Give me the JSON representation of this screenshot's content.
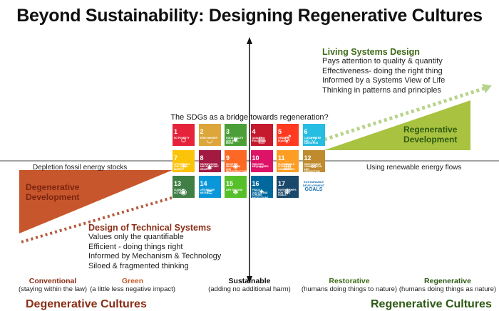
{
  "title": "Beyond Sustainability: Designing Regenerative Cultures",
  "living_systems": {
    "title": "Living Systems Design",
    "lines": [
      "Pays attention to quality & quantity",
      "Effectiveness- doing the right thing",
      "Informed by a Systems View of Life",
      "Thinking in patterns and principles"
    ]
  },
  "regenerative_development": [
    "Regenerative",
    "Development"
  ],
  "degenerative_development": [
    "Degenerative",
    "Development"
  ],
  "depletion_label": "Depletion fossil energy stocks",
  "renewable_label": "Using renewable energy flows",
  "technical_systems": {
    "title": "Design of Technical Systems",
    "lines": [
      "Values only the quantifiable",
      "Efficient - doing things right",
      "Informed by Mechanism & Technology",
      "Siloed & fragmented thinking"
    ]
  },
  "sdg_title": "The SDGs as a bridge towards regeneration?",
  "sdgs": [
    {
      "num": "1",
      "label": "NO POVERTY",
      "color": "#e5243b",
      "glyph": "☺"
    },
    {
      "num": "2",
      "label": "ZERO HUNGER",
      "color": "#dda63a",
      "glyph": "◡"
    },
    {
      "num": "3",
      "label": "GOOD HEALTH AND WELL-BEING",
      "color": "#4c9f38",
      "glyph": "♥"
    },
    {
      "num": "4",
      "label": "QUALITY EDUCATION",
      "color": "#c5192d",
      "glyph": "▤"
    },
    {
      "num": "5",
      "label": "GENDER EQUALITY",
      "color": "#ff3a21",
      "glyph": "⚥"
    },
    {
      "num": "6",
      "label": "CLEAN WATER AND SANITATION",
      "color": "#26bde2",
      "glyph": "▽"
    },
    {
      "num": "7",
      "label": "AFFORDABLE AND CLEAN ENERGY",
      "color": "#fcc30b",
      "glyph": "☀"
    },
    {
      "num": "8",
      "label": "DECENT WORK AND ECONOMIC GROWTH",
      "color": "#a21942",
      "glyph": "▲"
    },
    {
      "num": "9",
      "label": "INDUSTRY, INNOVATION AND INFRASTRUCTURE",
      "color": "#fd6925",
      "glyph": "◈"
    },
    {
      "num": "10",
      "label": "REDUCED INEQUALITIES",
      "color": "#dd1367",
      "glyph": "⇔"
    },
    {
      "num": "11",
      "label": "SUSTAINABLE CITIES AND COMMUNITIES",
      "color": "#fd9d24",
      "glyph": "▥"
    },
    {
      "num": "12",
      "label": "RESPONSIBLE CONSUMPTION AND PRODUCTION",
      "color": "#bf8b2e",
      "glyph": "∞"
    },
    {
      "num": "13",
      "label": "CLIMATE ACTION",
      "color": "#3f7e44",
      "glyph": "◉"
    },
    {
      "num": "14",
      "label": "LIFE BELOW WATER",
      "color": "#0a97d9",
      "glyph": "≋"
    },
    {
      "num": "15",
      "label": "LIFE ON LAND",
      "color": "#56c02b",
      "glyph": "♣"
    },
    {
      "num": "16",
      "label": "PEACE, JUSTICE AND STRONG INSTITUTIONS",
      "color": "#00689d",
      "glyph": "✦"
    },
    {
      "num": "17",
      "label": "PARTNERSHIPS FOR THE GOALS",
      "color": "#19486a",
      "glyph": "❋"
    }
  ],
  "goals_logo": {
    "small": "SUSTAINABLE DEVELOPMENT",
    "big": "GOALS"
  },
  "stages": [
    {
      "name": "Conventional",
      "sub": "(staying within the law)",
      "color": "#8a2e16"
    },
    {
      "name": "Green",
      "sub": "(a little less negative impact)",
      "color": "#c55a2a"
    },
    {
      "name": "Sustainable",
      "sub": "(adding no additional harm)",
      "color": "#111111"
    },
    {
      "name": "Restorative",
      "sub": "(humans doing things to nature)",
      "color": "#3d6b17"
    },
    {
      "name": "Regenerative",
      "sub": "(humans doing things as nature)",
      "color": "#2c5a12"
    }
  ],
  "degenerative_cultures": "Degenerative Cultures",
  "regenerative_cultures": "Regenerative Cultures",
  "colors": {
    "green": "#a9c23f",
    "rust": "#c8562c",
    "dotted_green": "#b8d38c",
    "dotted_rust": "#b45a3e"
  }
}
